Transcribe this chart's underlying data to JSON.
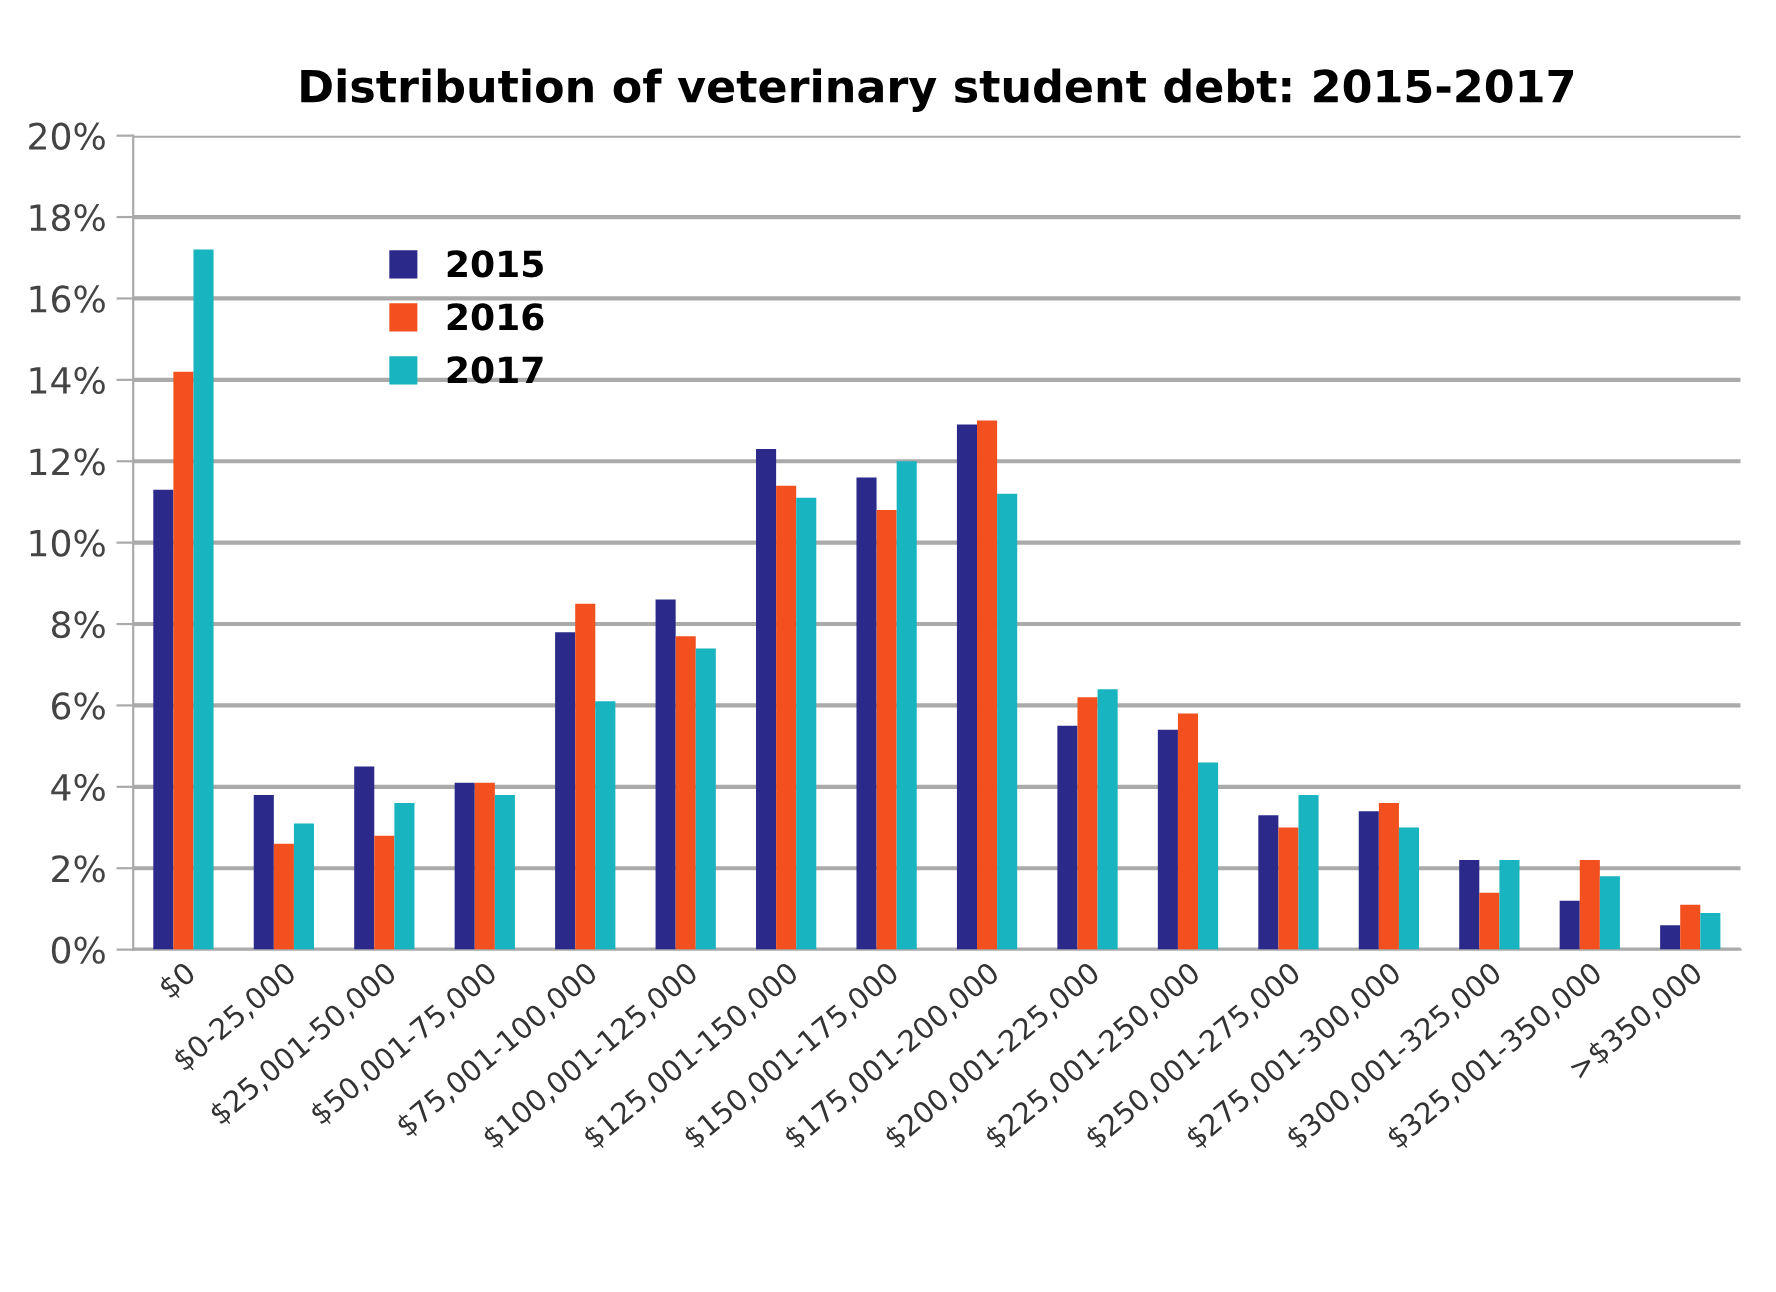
{
  "chart_data": {
    "type": "bar",
    "title": "Distribution of veterinary student debt: 2015-2017",
    "categories": [
      "$0",
      "$0-25,000",
      "$25,001-50,000",
      "$50,001-75,000",
      "$75,001-100,000",
      "$100,001-125,000",
      "$125,001-150,000",
      "$150,001-175,000",
      "$175,001-200,000",
      "$200,001-225,000",
      "$225,001-250,000",
      "$250,001-275,000",
      "$275,001-300,000",
      "$300,001-325,000",
      "$325,001-350,000",
      ">$350,000"
    ],
    "series": [
      {
        "name": "2015",
        "color": "#2b2a8a",
        "values": [
          11.3,
          3.8,
          4.5,
          4.1,
          7.8,
          8.6,
          12.3,
          11.6,
          12.9,
          5.5,
          5.4,
          3.3,
          3.4,
          2.2,
          1.2,
          0.6
        ]
      },
      {
        "name": "2016",
        "color": "#f2501e",
        "values": [
          14.2,
          2.6,
          2.8,
          4.1,
          8.5,
          7.7,
          11.4,
          10.8,
          13.0,
          6.2,
          5.8,
          3.0,
          3.6,
          1.4,
          2.2,
          1.1
        ]
      },
      {
        "name": "2017",
        "color": "#18b4c0",
        "values": [
          17.2,
          3.1,
          3.6,
          3.8,
          6.1,
          7.4,
          11.1,
          12.0,
          11.2,
          6.4,
          4.6,
          3.8,
          3.0,
          2.2,
          1.8,
          0.9
        ]
      }
    ],
    "ylim": [
      0,
      20
    ],
    "yticks": [
      {
        "value": 0,
        "label": "0%"
      },
      {
        "value": 2,
        "label": "2%"
      },
      {
        "value": 4,
        "label": "4%"
      },
      {
        "value": 6,
        "label": "6%"
      },
      {
        "value": 8,
        "label": "8%"
      },
      {
        "value": 10,
        "label": "10%"
      },
      {
        "value": 12,
        "label": "12%"
      },
      {
        "value": 14,
        "label": "14%"
      },
      {
        "value": 16,
        "label": "16%"
      },
      {
        "value": 18,
        "label": "18%"
      },
      {
        "value": 20,
        "label": "20%"
      }
    ],
    "grid": "y",
    "legend": "top left"
  }
}
